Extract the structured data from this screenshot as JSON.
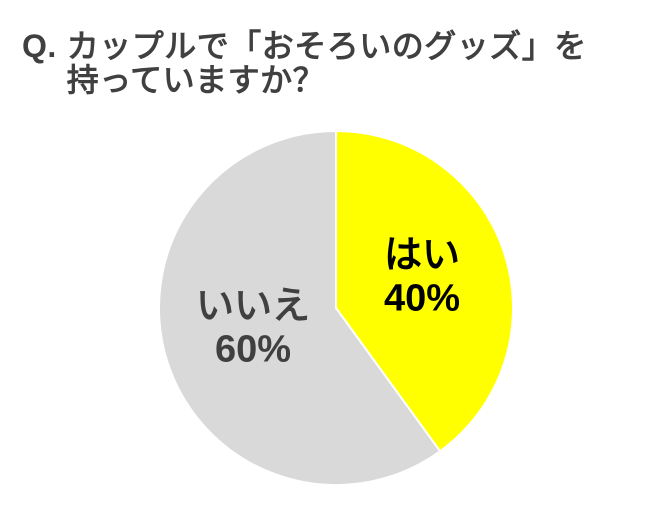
{
  "title": {
    "prefix": "Q.",
    "line1": "カップルで「おそろいのグッズ」を",
    "line2": "持っていますか？",
    "color": "#404040"
  },
  "chart_data": {
    "type": "pie",
    "title": "Q. カップルで「おそろいのグッズ」を持っていますか？",
    "categories": [
      "はい",
      "いいえ"
    ],
    "values": [
      40,
      60
    ],
    "unit": "%",
    "colors": [
      "#FFFF00",
      "#D9D9D9"
    ],
    "label_colors": [
      "#000000",
      "#404040"
    ],
    "separator_color": "#FFFFFF",
    "start_angle_deg": 0,
    "direction": "clockwise",
    "legend": "none",
    "labels": [
      {
        "name": "はい",
        "value_text": "40%"
      },
      {
        "name": "いいえ",
        "value_text": "60%"
      }
    ]
  }
}
